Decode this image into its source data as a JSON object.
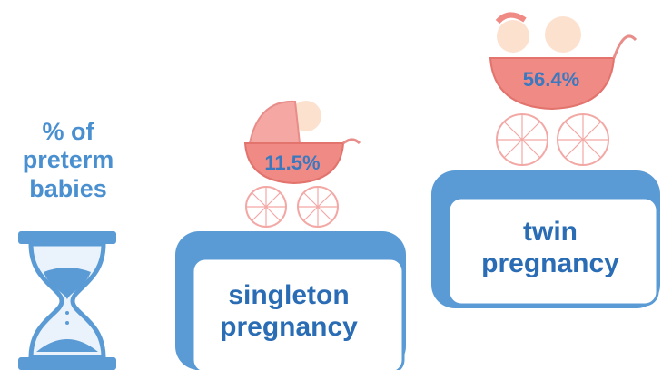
{
  "title": [
    "% of",
    "preterm",
    "babies"
  ],
  "items": [
    {
      "label": [
        "singleton",
        "pregnancy"
      ],
      "value": "11.5%"
    },
    {
      "label": [
        "twin",
        "pregnancy"
      ],
      "value": "56.4%"
    }
  ]
}
